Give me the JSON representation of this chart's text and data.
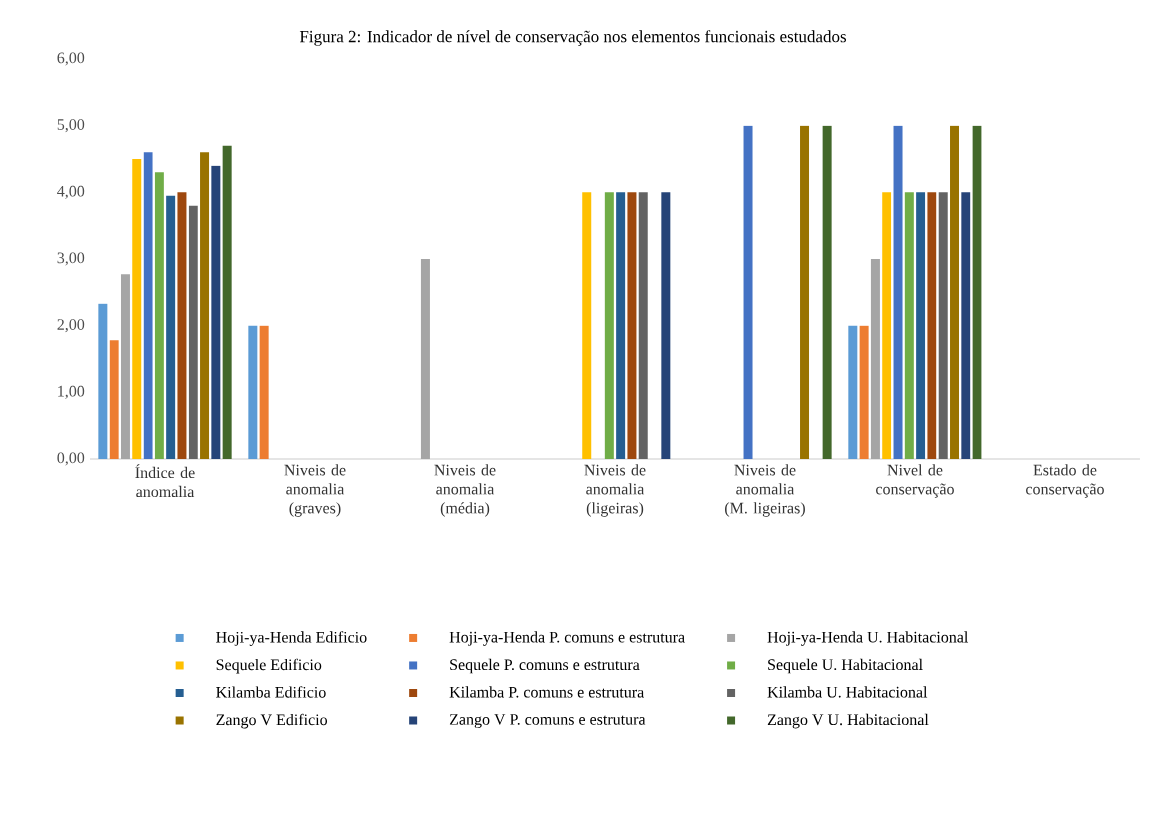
{
  "chart_data": {
    "type": "bar",
    "title": "Figura 2: Indicador de nível de conservação nos elementos funcionais estudados",
    "categories": [
      "Índice de anomalia",
      "Niveis de anomalia (graves)",
      "Niveis de anomalia (média)",
      "Niveis de anomalia (ligeiras)",
      "Niveis de anomalia (M. ligeiras)",
      "Nivel de conservação",
      "Estado de conservação"
    ],
    "series": [
      {
        "name": "Hoji-ya-Henda Edificio",
        "color": "#5b9bd5",
        "values": [
          2.33,
          2,
          null,
          null,
          null,
          2,
          null
        ]
      },
      {
        "name": "Hoji-ya-Henda P. comuns e estrutura",
        "color": "#ed7d31",
        "values": [
          1.78,
          2,
          null,
          null,
          null,
          2,
          null
        ]
      },
      {
        "name": "Hoji-ya-Henda U. Habitacional",
        "color": "#a5a5a5",
        "values": [
          2.77,
          null,
          3,
          null,
          null,
          3,
          null
        ]
      },
      {
        "name": "Sequele Edificio",
        "color": "#ffc000",
        "values": [
          4.5,
          null,
          null,
          4,
          null,
          4,
          null
        ]
      },
      {
        "name": "Sequele P. comuns e estrutura",
        "color": "#4472c4",
        "values": [
          4.6,
          null,
          null,
          null,
          5,
          5,
          null
        ]
      },
      {
        "name": "Sequele U. Habitacional",
        "color": "#70ad47",
        "values": [
          4.3,
          null,
          null,
          4,
          null,
          4,
          null
        ]
      },
      {
        "name": "Kilamba Edificio",
        "color": "#255e91",
        "values": [
          3.95,
          null,
          null,
          4,
          null,
          4,
          null
        ]
      },
      {
        "name": "Kilamba P. comuns e estrutura",
        "color": "#9e480e",
        "values": [
          4.0,
          null,
          null,
          4,
          null,
          4,
          null
        ]
      },
      {
        "name": "Kilamba U. Habitacional",
        "color": "#636363",
        "values": [
          3.8,
          null,
          null,
          4,
          null,
          4,
          null
        ]
      },
      {
        "name": "Zango V Edificio",
        "color": "#997300",
        "values": [
          4.6,
          null,
          null,
          null,
          5,
          5,
          null
        ]
      },
      {
        "name": "Zango V P. comuns e estrutura",
        "color": "#264478",
        "values": [
          4.4,
          null,
          null,
          4,
          null,
          4,
          null
        ]
      },
      {
        "name": "Zango V U. Habitacional",
        "color": "#43682b",
        "values": [
          4.7,
          null,
          null,
          null,
          5,
          5,
          null
        ]
      }
    ],
    "ylim": [
      0,
      6
    ],
    "yticks": [
      {
        "value": 0,
        "label": "0,00"
      },
      {
        "value": 1,
        "label": "1,00"
      },
      {
        "value": 2,
        "label": "2,00"
      },
      {
        "value": 3,
        "label": "3,00"
      },
      {
        "value": 4,
        "label": "4,00"
      },
      {
        "value": 5,
        "label": "5,00"
      },
      {
        "value": 6,
        "label": "6,00"
      }
    ],
    "grid": false,
    "legend": "bottom"
  }
}
